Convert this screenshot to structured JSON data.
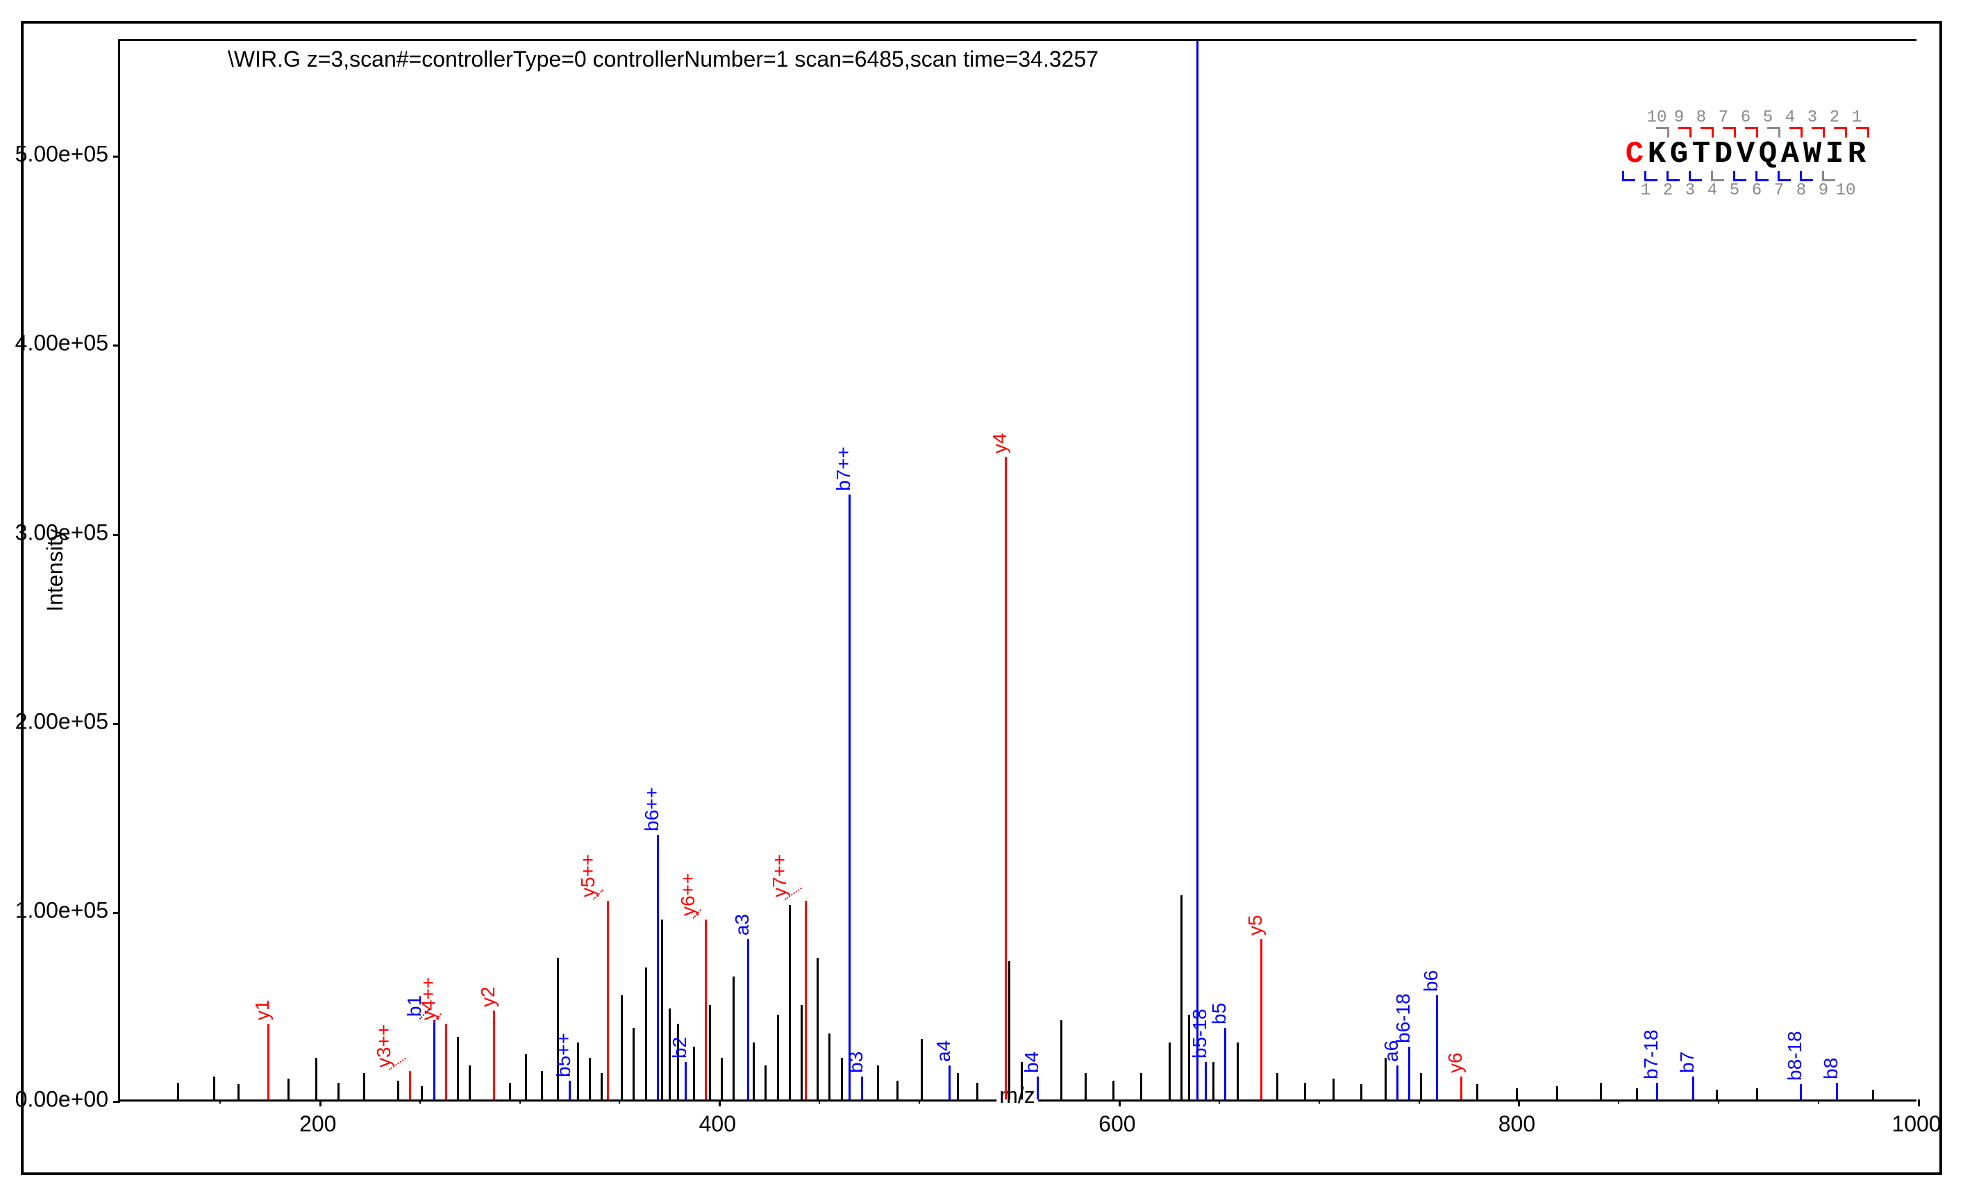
{
  "chart": {
    "type": "mass-spectrum",
    "title": "\\WIR.G z=3,scan#=controllerType=0 controllerNumber=1 scan=6485,scan time=34.3257",
    "xlabel": "m/z",
    "ylabel": "Intensity",
    "title_fontsize": 32,
    "label_fontsize": 32,
    "tick_fontsize": 32,
    "xlim": [
      100,
      1000
    ],
    "ylim": [
      0,
      560000
    ],
    "xtick_values": [
      200,
      400,
      600,
      800,
      1000
    ],
    "xtick_minor_step": 50,
    "ytick_values": [
      0,
      100000,
      200000,
      300000,
      400000,
      500000
    ],
    "ytick_labels": [
      "0.00e+00",
      "1.00e+05",
      "2.00e+05",
      "3.00e+05",
      "4.00e+05",
      "5.00e+05"
    ],
    "background_color": "#ffffff",
    "axis_color": "#000000",
    "colors": {
      "b_ion": "#0000ff",
      "y_ion": "#ff0000",
      "a_ion": "#0000ff",
      "unassigned": "#000000",
      "seq_gray": "#888888"
    },
    "sequence": {
      "letters": [
        "C",
        "K",
        "G",
        "T",
        "D",
        "V",
        "Q",
        "A",
        "W",
        "I",
        "R"
      ],
      "first_color": "#ff0000",
      "rest_color": "#000000",
      "top_numbers": [
        "10",
        "9",
        "8",
        "7",
        "6",
        "5",
        "4",
        "3",
        "2",
        "1"
      ],
      "bottom_numbers": [
        "1",
        "2",
        "3",
        "4",
        "5",
        "6",
        "7",
        "8",
        "9",
        "10"
      ],
      "top_bracket_color": "#ff0000",
      "bottom_bracket_color": "#0000ff",
      "top_bracket_gray_indices": [
        0,
        5
      ],
      "bottom_bracket_gray_indices": [
        5,
        10
      ]
    },
    "labeled_peaks": [
      {
        "mz": 175,
        "intensity": 40000,
        "label": "y1",
        "series": "y"
      },
      {
        "mz": 246,
        "intensity": 15000,
        "label": "y3++",
        "series": "y",
        "dotted_to": 236
      },
      {
        "mz": 258,
        "intensity": 42000,
        "label": "b1",
        "series": "b",
        "dotted_to": 251
      },
      {
        "mz": 264,
        "intensity": 40000,
        "label": "y4++",
        "series": "y",
        "dotted_to": 258
      },
      {
        "mz": 288,
        "intensity": 47000,
        "label": "y2",
        "series": "y"
      },
      {
        "mz": 326,
        "intensity": 10000,
        "label": "b5++",
        "series": "b"
      },
      {
        "mz": 345,
        "intensity": 105000,
        "label": "y5++",
        "series": "y",
        "dotted_to": 338
      },
      {
        "mz": 370,
        "intensity": 140000,
        "label": "b6++",
        "series": "b"
      },
      {
        "mz": 384,
        "intensity": 20000,
        "label": "b2",
        "series": "b"
      },
      {
        "mz": 394,
        "intensity": 95000,
        "label": "y6++",
        "series": "y",
        "dotted_to": 388
      },
      {
        "mz": 415,
        "intensity": 85000,
        "label": "a3",
        "series": "a"
      },
      {
        "mz": 444,
        "intensity": 105000,
        "label": "y7++",
        "series": "y",
        "dotted_to": 434
      },
      {
        "mz": 466,
        "intensity": 320000,
        "label": "b7++",
        "series": "b"
      },
      {
        "mz": 472,
        "intensity": 12000,
        "label": "b3",
        "series": "b"
      },
      {
        "mz": 516,
        "intensity": 18000,
        "label": "a4",
        "series": "a"
      },
      {
        "mz": 544,
        "intensity": 340000,
        "label": "y4",
        "series": "y"
      },
      {
        "mz": 560,
        "intensity": 12000,
        "label": "b4",
        "series": "b"
      },
      {
        "mz": 640,
        "intensity": 560000,
        "label": "",
        "series": "b"
      },
      {
        "mz": 644,
        "intensity": 20000,
        "label": "b5-18",
        "series": "b"
      },
      {
        "mz": 654,
        "intensity": 38000,
        "label": "b5",
        "series": "b"
      },
      {
        "mz": 672,
        "intensity": 85000,
        "label": "y5",
        "series": "y"
      },
      {
        "mz": 740,
        "intensity": 18000,
        "label": "a6",
        "series": "a"
      },
      {
        "mz": 746,
        "intensity": 28000,
        "label": "b6-18",
        "series": "b"
      },
      {
        "mz": 760,
        "intensity": 55000,
        "label": "b6",
        "series": "b"
      },
      {
        "mz": 772,
        "intensity": 12000,
        "label": "y6",
        "series": "y"
      },
      {
        "mz": 870,
        "intensity": 9000,
        "label": "b7-18",
        "series": "b"
      },
      {
        "mz": 888,
        "intensity": 12000,
        "label": "b7",
        "series": "b"
      },
      {
        "mz": 942,
        "intensity": 8000,
        "label": "b8-18",
        "series": "b"
      },
      {
        "mz": 960,
        "intensity": 9000,
        "label": "b8",
        "series": "b"
      }
    ],
    "unassigned_peaks": [
      {
        "mz": 130,
        "intensity": 9000
      },
      {
        "mz": 148,
        "intensity": 12000
      },
      {
        "mz": 160,
        "intensity": 8000
      },
      {
        "mz": 185,
        "intensity": 11000
      },
      {
        "mz": 199,
        "intensity": 22000
      },
      {
        "mz": 210,
        "intensity": 9000
      },
      {
        "mz": 223,
        "intensity": 14000
      },
      {
        "mz": 240,
        "intensity": 10000
      },
      {
        "mz": 252,
        "intensity": 7000
      },
      {
        "mz": 270,
        "intensity": 33000
      },
      {
        "mz": 276,
        "intensity": 18000
      },
      {
        "mz": 296,
        "intensity": 9000
      },
      {
        "mz": 304,
        "intensity": 24000
      },
      {
        "mz": 312,
        "intensity": 15000
      },
      {
        "mz": 320,
        "intensity": 75000
      },
      {
        "mz": 330,
        "intensity": 30000
      },
      {
        "mz": 336,
        "intensity": 22000
      },
      {
        "mz": 342,
        "intensity": 14000
      },
      {
        "mz": 352,
        "intensity": 55000
      },
      {
        "mz": 358,
        "intensity": 38000
      },
      {
        "mz": 364,
        "intensity": 70000
      },
      {
        "mz": 372,
        "intensity": 95000
      },
      {
        "mz": 376,
        "intensity": 48000
      },
      {
        "mz": 380,
        "intensity": 40000
      },
      {
        "mz": 388,
        "intensity": 28000
      },
      {
        "mz": 396,
        "intensity": 50000
      },
      {
        "mz": 402,
        "intensity": 22000
      },
      {
        "mz": 408,
        "intensity": 65000
      },
      {
        "mz": 418,
        "intensity": 30000
      },
      {
        "mz": 424,
        "intensity": 18000
      },
      {
        "mz": 430,
        "intensity": 45000
      },
      {
        "mz": 436,
        "intensity": 103000
      },
      {
        "mz": 442,
        "intensity": 50000
      },
      {
        "mz": 450,
        "intensity": 75000
      },
      {
        "mz": 456,
        "intensity": 35000
      },
      {
        "mz": 462,
        "intensity": 22000
      },
      {
        "mz": 480,
        "intensity": 18000
      },
      {
        "mz": 490,
        "intensity": 10000
      },
      {
        "mz": 502,
        "intensity": 32000
      },
      {
        "mz": 520,
        "intensity": 14000
      },
      {
        "mz": 530,
        "intensity": 9000
      },
      {
        "mz": 546,
        "intensity": 73000
      },
      {
        "mz": 552,
        "intensity": 20000
      },
      {
        "mz": 572,
        "intensity": 42000
      },
      {
        "mz": 584,
        "intensity": 14000
      },
      {
        "mz": 598,
        "intensity": 10000
      },
      {
        "mz": 612,
        "intensity": 14000
      },
      {
        "mz": 626,
        "intensity": 30000
      },
      {
        "mz": 632,
        "intensity": 108000
      },
      {
        "mz": 636,
        "intensity": 45000
      },
      {
        "mz": 648,
        "intensity": 20000
      },
      {
        "mz": 660,
        "intensity": 30000
      },
      {
        "mz": 680,
        "intensity": 14000
      },
      {
        "mz": 694,
        "intensity": 9000
      },
      {
        "mz": 708,
        "intensity": 11000
      },
      {
        "mz": 722,
        "intensity": 8000
      },
      {
        "mz": 734,
        "intensity": 22000
      },
      {
        "mz": 752,
        "intensity": 14000
      },
      {
        "mz": 780,
        "intensity": 8000
      },
      {
        "mz": 800,
        "intensity": 6000
      },
      {
        "mz": 820,
        "intensity": 7000
      },
      {
        "mz": 842,
        "intensity": 9000
      },
      {
        "mz": 860,
        "intensity": 6000
      },
      {
        "mz": 900,
        "intensity": 5000
      },
      {
        "mz": 920,
        "intensity": 6000
      },
      {
        "mz": 978,
        "intensity": 5000
      }
    ]
  }
}
